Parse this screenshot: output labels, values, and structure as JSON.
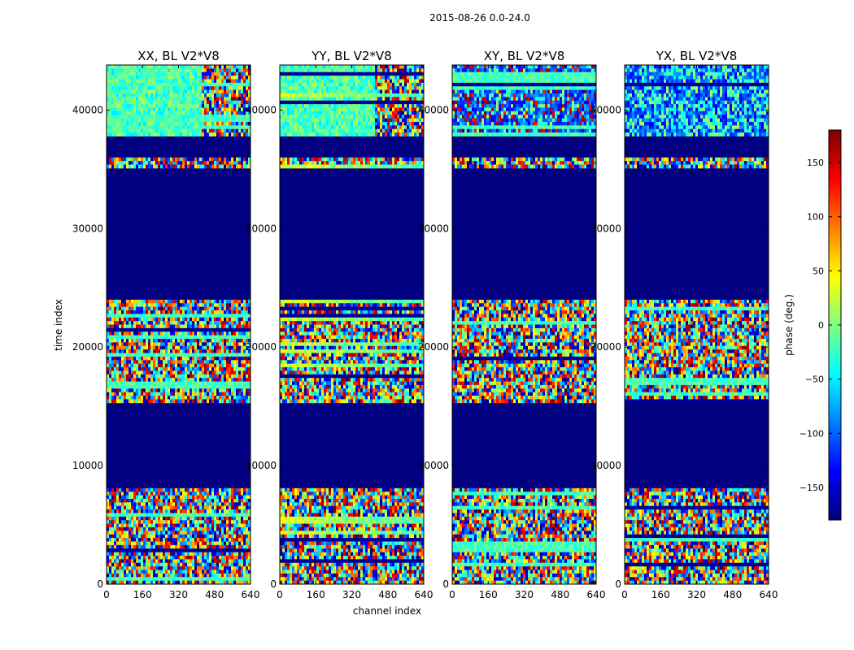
{
  "figure": {
    "suptitle": "2015-08-26 0.0-24.0"
  },
  "chart_data": {
    "type": "heatmap",
    "title": "2015-08-26 0.0-24.0",
    "xlabel": "channel index",
    "ylabel": "time index",
    "xlim": [
      0,
      640
    ],
    "ylim": [
      0,
      43800
    ],
    "x_ticks": [
      0,
      160,
      320,
      480,
      640
    ],
    "y_ticks": [
      0,
      10000,
      20000,
      30000,
      40000
    ],
    "panels": [
      {
        "title": "XX, BL V2*V8",
        "pol": "XX"
      },
      {
        "title": "YY, BL V2*V8",
        "pol": "YY"
      },
      {
        "title": "XY, BL V2*V8",
        "pol": "XY"
      },
      {
        "title": "YX, BL V2*V8",
        "pol": "YX"
      }
    ],
    "flagged_time_ranges": [
      [
        8200,
        15300
      ],
      [
        24100,
        35000
      ],
      [
        36000,
        37800
      ]
    ],
    "colorbar": {
      "label": "phase (deg.)",
      "range": [
        -180,
        180
      ],
      "ticks": [
        -150,
        -100,
        -50,
        0,
        50,
        100,
        150
      ],
      "tick_labels": [
        "−150",
        "−100",
        "−50",
        "0",
        "50",
        "100",
        "150"
      ],
      "colormap": "jet"
    }
  }
}
